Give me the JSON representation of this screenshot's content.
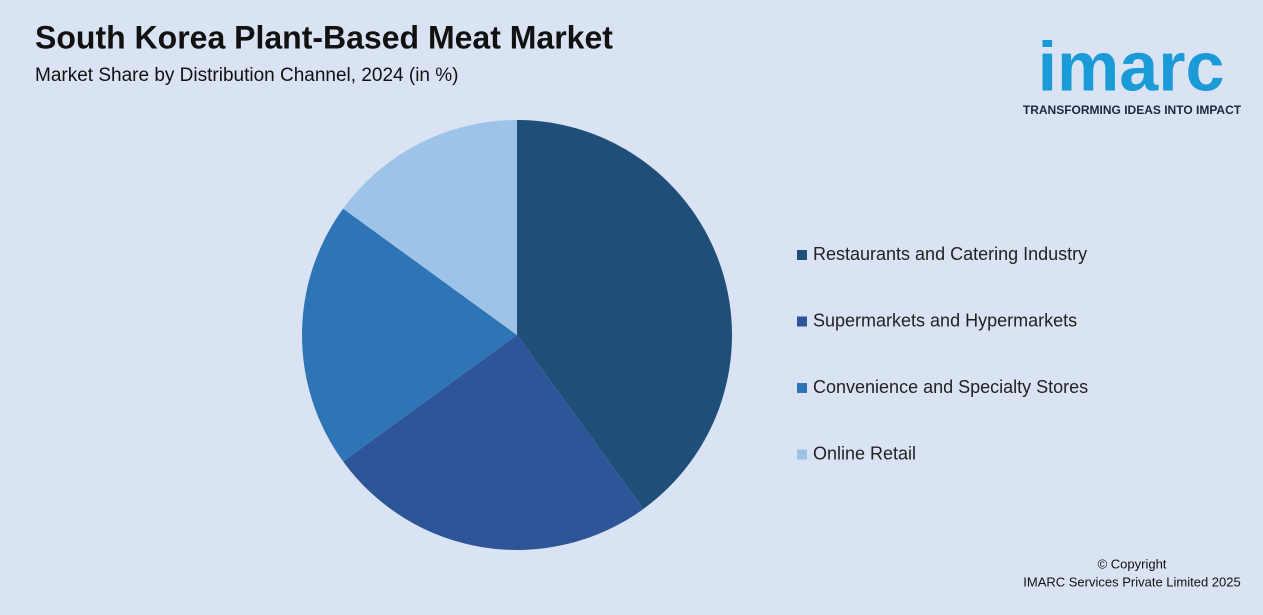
{
  "chart_data": {
    "type": "pie",
    "title": "South Korea Plant-Based Meat Market",
    "subtitle": "Market Share by Distribution Channel, 2024 (in %)",
    "categories": [
      "Restaurants and Catering Industry",
      "Supermarkets and Hypermarkets",
      "Convenience and Specialty Stores",
      "Online Retail"
    ],
    "values": [
      40,
      25,
      20,
      15
    ],
    "colors": [
      "#1f4e79",
      "#2e5597",
      "#2e75b6",
      "#9dc3e6"
    ],
    "legend": "right"
  },
  "branding": {
    "logo": "imarc",
    "tagline": "TRANSFORMING IDEAS INTO IMPACT",
    "copyright": "© Copyright",
    "company": "IMARC Services Private Limited 2025"
  }
}
